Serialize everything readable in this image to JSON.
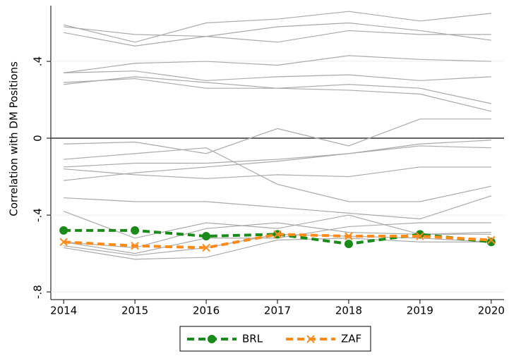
{
  "chart_data": {
    "type": "line",
    "y_label": "Correlation with DM Positions",
    "x": [
      2014,
      2015,
      2016,
      2017,
      2018,
      2019,
      2020
    ],
    "xlim": [
      2013.82,
      2020.18
    ],
    "xticks": [
      2014,
      2015,
      2016,
      2017,
      2018,
      2019,
      2020
    ],
    "ylim": [
      -0.84,
      0.69
    ],
    "yticks": [
      {
        "value": -0.8,
        "label": "-.8"
      },
      {
        "value": -0.4,
        "label": "-.4"
      },
      0,
      {
        "value": 0.4,
        "label": ".4"
      }
    ],
    "hline": 0,
    "grid": true,
    "legend": "bottom",
    "series": [
      {
        "color": "#aaaaaa",
        "values": [
          0.59,
          0.5,
          0.6,
          0.62,
          0.66,
          0.61,
          0.65
        ]
      },
      {
        "color": "#aaaaaa",
        "values": [
          0.55,
          0.48,
          0.53,
          0.58,
          0.6,
          0.56,
          0.51
        ]
      },
      {
        "color": "#aaaaaa",
        "values": [
          0.58,
          0.54,
          0.53,
          0.5,
          0.56,
          0.54,
          0.54
        ]
      },
      {
        "color": "#aaaaaa",
        "values": [
          0.34,
          0.39,
          0.4,
          0.38,
          0.43,
          0.41,
          0.4
        ]
      },
      {
        "color": "#aaaaaa",
        "values": [
          0.34,
          0.35,
          0.3,
          0.32,
          0.33,
          0.3,
          0.32
        ]
      },
      {
        "color": "#aaaaaa",
        "values": [
          0.28,
          0.32,
          0.29,
          0.26,
          0.25,
          0.23,
          0.14
        ]
      },
      {
        "color": "#aaaaaa",
        "values": [
          0.29,
          0.31,
          0.26,
          0.26,
          0.28,
          0.26,
          0.18
        ]
      },
      {
        "color": "#aaaaaa",
        "values": [
          -0.03,
          -0.02,
          -0.08,
          0.05,
          -0.04,
          0.1,
          0.1
        ]
      },
      {
        "color": "#aaaaaa",
        "values": [
          -0.11,
          -0.08,
          -0.05,
          -0.24,
          -0.33,
          -0.33,
          -0.25
        ]
      },
      {
        "color": "#aaaaaa",
        "values": [
          -0.15,
          -0.13,
          -0.13,
          -0.11,
          -0.08,
          -0.03,
          -0.01
        ]
      },
      {
        "color": "#aaaaaa",
        "values": [
          -0.16,
          -0.19,
          -0.21,
          -0.19,
          -0.2,
          -0.15,
          -0.15
        ]
      },
      {
        "color": "#aaaaaa",
        "values": [
          -0.22,
          -0.18,
          -0.15,
          -0.12,
          -0.08,
          -0.04,
          -0.05
        ]
      },
      {
        "color": "#aaaaaa",
        "values": [
          -0.31,
          -0.33,
          -0.33,
          -0.36,
          -0.39,
          -0.42,
          -0.3
        ]
      },
      {
        "color": "#aaaaaa",
        "values": [
          -0.38,
          -0.52,
          -0.44,
          -0.47,
          -0.4,
          -0.5,
          -0.49
        ]
      },
      {
        "color": "#aaaaaa",
        "values": [
          -0.54,
          -0.6,
          -0.52,
          -0.52,
          -0.46,
          -0.44,
          -0.44
        ]
      },
      {
        "color": "#aaaaaa",
        "values": [
          -0.56,
          -0.61,
          -0.57,
          -0.5,
          -0.51,
          -0.52,
          -0.54
        ]
      },
      {
        "color": "#aaaaaa",
        "values": [
          -0.57,
          -0.63,
          -0.62,
          -0.53,
          -0.52,
          -0.54,
          -0.54
        ]
      },
      {
        "color": "#aaaaaa",
        "values": [
          -0.54,
          -0.57,
          -0.47,
          -0.44,
          -0.49,
          -0.5,
          -0.5
        ]
      },
      {
        "name": "BRL",
        "color": "#1a8a1a",
        "marker": "circle",
        "dashed": true,
        "values": [
          -0.48,
          -0.48,
          -0.51,
          -0.5,
          -0.55,
          -0.5,
          -0.54
        ]
      },
      {
        "name": "ZAF",
        "color": "#ff8c1a",
        "marker": "x",
        "dashed": true,
        "values": [
          -0.54,
          -0.56,
          -0.57,
          -0.5,
          -0.51,
          -0.51,
          -0.53
        ]
      }
    ]
  }
}
